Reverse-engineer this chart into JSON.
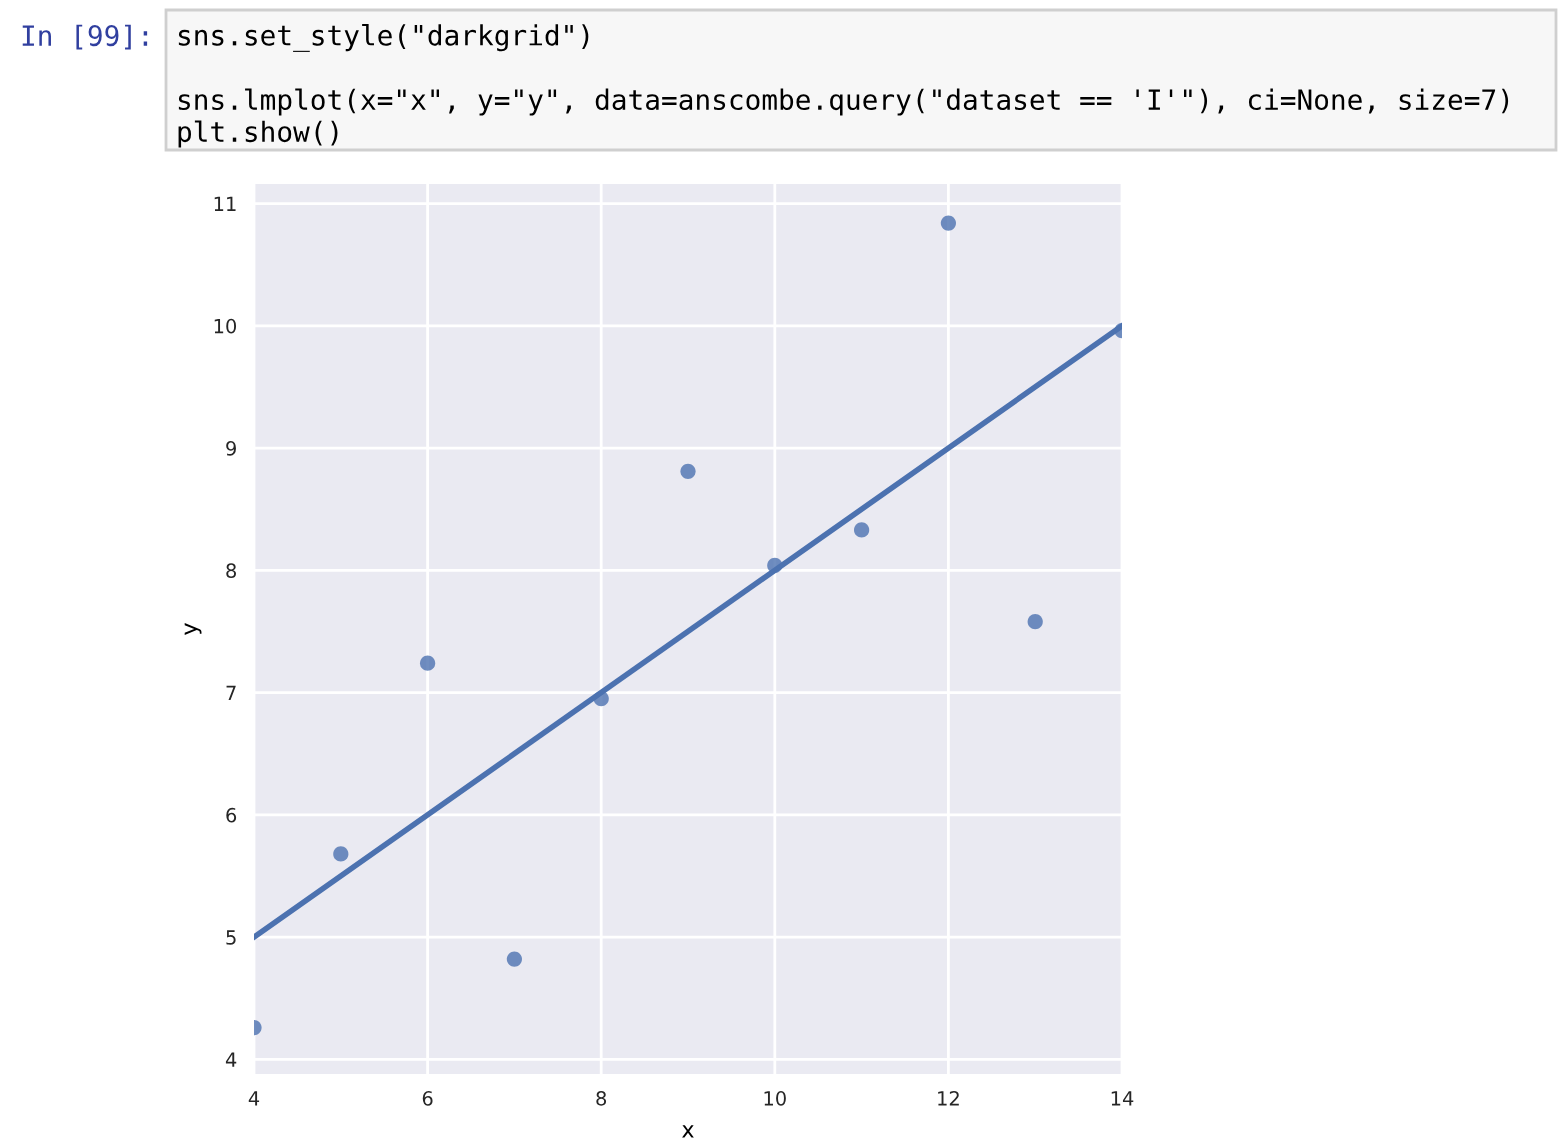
{
  "chart_data": {
    "type": "scatter",
    "xlabel": "x",
    "ylabel": "y",
    "annotations": [
      "In [99]:",
      "sns.set_style(\"darkgrid\")",
      "sns.lmplot(x=\"x\", y=\"y\", data=anscombe.query(\"dataset == 'I'\"), ci=None, size=7)",
      "plt.show()"
    ],
    "series": [
      {
        "color": "#4c72b0",
        "marker": "circle",
        "x": [
          10,
          8,
          13,
          9,
          11,
          14,
          6,
          4,
          12,
          7,
          5
        ],
        "values": [
          8.04,
          6.95,
          7.58,
          8.81,
          8.33,
          9.96,
          7.24,
          4.26,
          10.84,
          4.82,
          5.68
        ]
      },
      {
        "type": "line",
        "color": "#4c72b0",
        "x": [
          4,
          14
        ],
        "values": [
          5.0,
          10.0
        ]
      }
    ],
    "xlim": [
      4,
      14
    ],
    "ylim": [
      3.88,
      11.16
    ],
    "xticks": [
      4,
      6,
      8,
      10,
      12,
      14
    ],
    "yticks": [
      4,
      5,
      6,
      7,
      8,
      9,
      10,
      11
    ],
    "grid": true,
    "line_style": "solid"
  }
}
